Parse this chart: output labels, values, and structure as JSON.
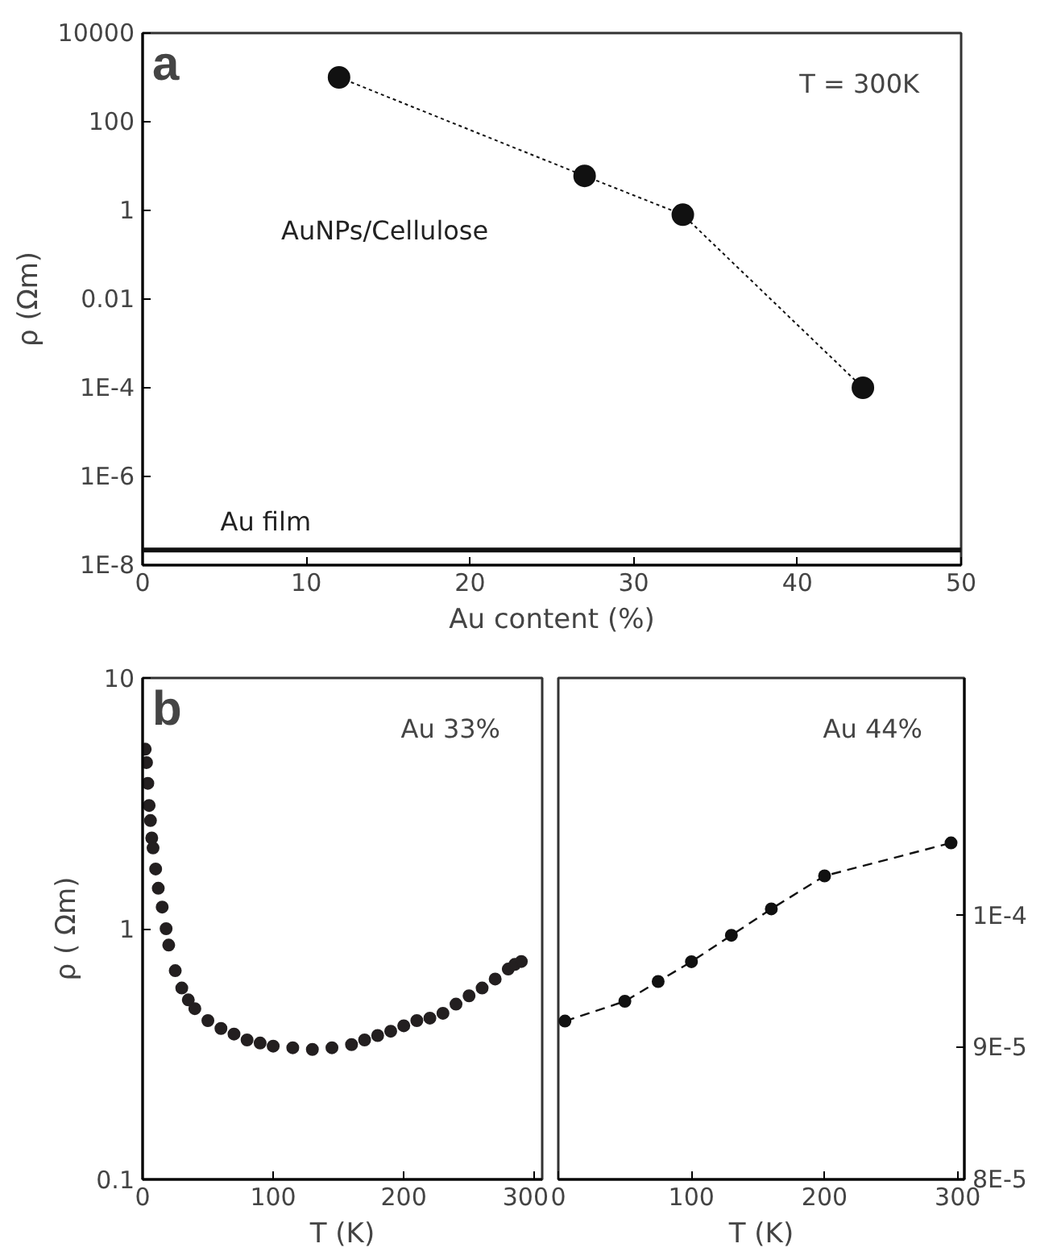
{
  "chart_data": [
    {
      "type": "line",
      "xlabel": "Au content (%)",
      "ylabel": "ρ (Ωm)",
      "log": "y",
      "xlim": [
        0,
        50
      ],
      "xticks": [
        0,
        10,
        20,
        30,
        40,
        50
      ],
      "ylim": [
        1e-08,
        10000
      ],
      "yticks": [
        {
          "value": 10000,
          "label": "10000"
        },
        {
          "value": 100,
          "label": "100"
        },
        {
          "value": 1,
          "label": "1"
        },
        {
          "value": 0.01,
          "label": "0.01"
        },
        {
          "value": 0.0001,
          "label": "1E-4"
        },
        {
          "value": 1e-06,
          "label": "1E-6"
        },
        {
          "value": 1e-08,
          "label": "1E-8"
        }
      ],
      "marker": "circle",
      "line_style": "dotted",
      "grid": false,
      "series": [
        {
          "name": "AuNPs/Cellulose",
          "color": "#111111",
          "x": [
            12,
            27,
            33,
            44
          ],
          "values": [
            1000,
            6,
            0.8,
            0.0001
          ]
        }
      ],
      "ref_lines": [
        {
          "axis": "y",
          "value": 2.2e-08,
          "label": "Au film",
          "color": "#111111",
          "line_style": "solid"
        }
      ],
      "annotations": [
        "a",
        "T = 300K"
      ]
    },
    {
      "type": "scatter",
      "xlabel": "T (K)",
      "ylabel": "ρ ( Ωm)",
      "log": "y",
      "xlim": [
        0,
        306
      ],
      "xticks": [
        0,
        100,
        200,
        300
      ],
      "ylim": [
        0.1,
        10
      ],
      "yticks": [
        {
          "value": 0.1,
          "label": "0.1"
        },
        {
          "value": 1,
          "label": "1"
        },
        {
          "value": 10,
          "label": "10"
        }
      ],
      "marker": "circle",
      "grid": false,
      "series": [
        {
          "color": "#231f20",
          "x": [
            2,
            3,
            4,
            5,
            6,
            7,
            8,
            10,
            12,
            15,
            18,
            20,
            25,
            30,
            35,
            40,
            50,
            60,
            70,
            80,
            90,
            100,
            115,
            130,
            145,
            160,
            170,
            180,
            190,
            200,
            210,
            220,
            230,
            240,
            250,
            260,
            270,
            280,
            285,
            290
          ],
          "values": [
            5.2,
            4.6,
            3.8,
            3.1,
            2.7,
            2.3,
            2.1,
            1.73,
            1.45,
            1.22,
            1.0,
            0.86,
            0.68,
            0.58,
            0.52,
            0.48,
            0.43,
            0.4,
            0.38,
            0.36,
            0.35,
            0.34,
            0.335,
            0.33,
            0.335,
            0.345,
            0.36,
            0.375,
            0.39,
            0.41,
            0.43,
            0.44,
            0.46,
            0.5,
            0.54,
            0.58,
            0.63,
            0.69,
            0.72,
            0.74
          ]
        }
      ],
      "annotations": [
        "b",
        "Au 33%"
      ]
    },
    {
      "type": "line",
      "xlabel": "T (K)",
      "xlim": [
        0,
        305
      ],
      "xticks": [
        0,
        100,
        200,
        300
      ],
      "ylim": [
        8e-05,
        0.000118
      ],
      "yticks": [
        {
          "value": 8e-05,
          "label": "8E-5"
        },
        {
          "value": 9e-05,
          "label": "9E-5"
        },
        {
          "value": 0.0001,
          "label": "1E-4"
        }
      ],
      "marker": "circle",
      "line_style": "dashed",
      "grid": false,
      "series": [
        {
          "color": "#111111",
          "x": [
            5,
            50,
            75,
            100,
            130,
            160,
            200,
            295
          ],
          "values": [
            9.2e-05,
            9.35e-05,
            9.5e-05,
            9.65e-05,
            9.85e-05,
            0.0001005,
            0.000103,
            0.0001055
          ]
        }
      ],
      "annotations": [
        "Au 44%"
      ]
    }
  ]
}
